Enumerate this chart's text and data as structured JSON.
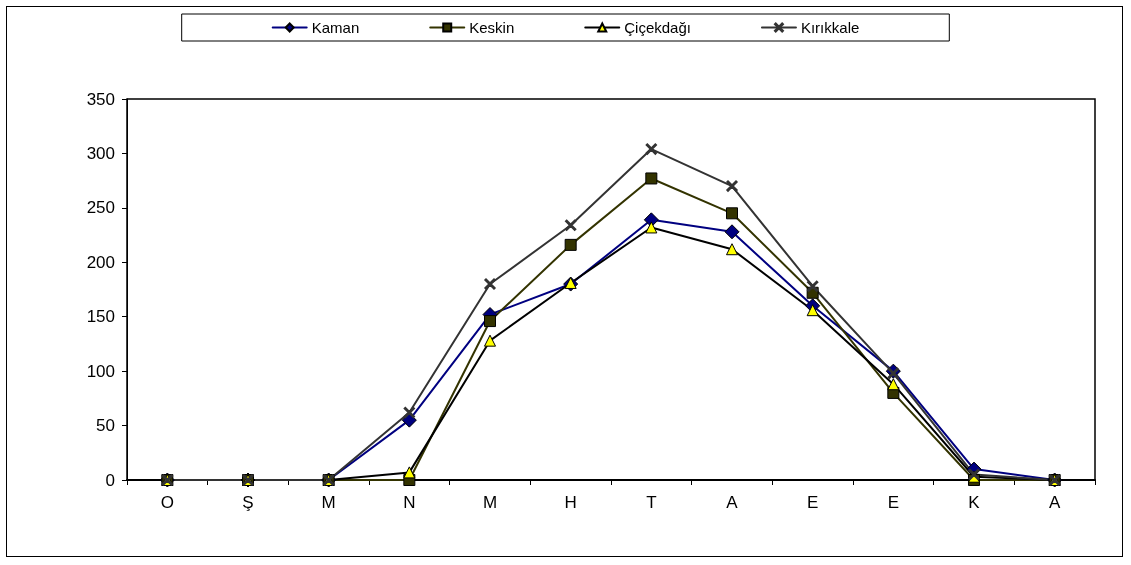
{
  "chart_data": {
    "type": "line",
    "categories": [
      "O",
      "Ş",
      "M",
      "N",
      "M",
      "H",
      "T",
      "A",
      "E",
      "E",
      "K",
      "A"
    ],
    "series": [
      {
        "name": "Kaman",
        "color": "#000080",
        "marker": "diamond",
        "values": [
          0,
          0,
          0,
          55,
          152,
          180,
          239,
          228,
          160,
          100,
          10,
          0
        ]
      },
      {
        "name": "Keskin",
        "color": "#333300",
        "marker": "square",
        "values": [
          0,
          0,
          0,
          0,
          146,
          216,
          277,
          245,
          172,
          80,
          0,
          0
        ]
      },
      {
        "name": "Çiçekdağı",
        "color": "#000000",
        "marker": "triangle",
        "values": [
          0,
          0,
          0,
          7,
          128,
          181,
          232,
          212,
          156,
          88,
          3,
          0
        ]
      },
      {
        "name": "Kırıkkale",
        "color": "#333333",
        "marker": "cross",
        "values": [
          0,
          0,
          0,
          62,
          180,
          234,
          304,
          270,
          178,
          98,
          5,
          0
        ]
      }
    ],
    "ylim": [
      0,
      350
    ],
    "yticks": [
      0,
      50,
      100,
      150,
      200,
      250,
      300,
      350
    ],
    "grid": false,
    "legend": "top",
    "line_style": "solid"
  }
}
